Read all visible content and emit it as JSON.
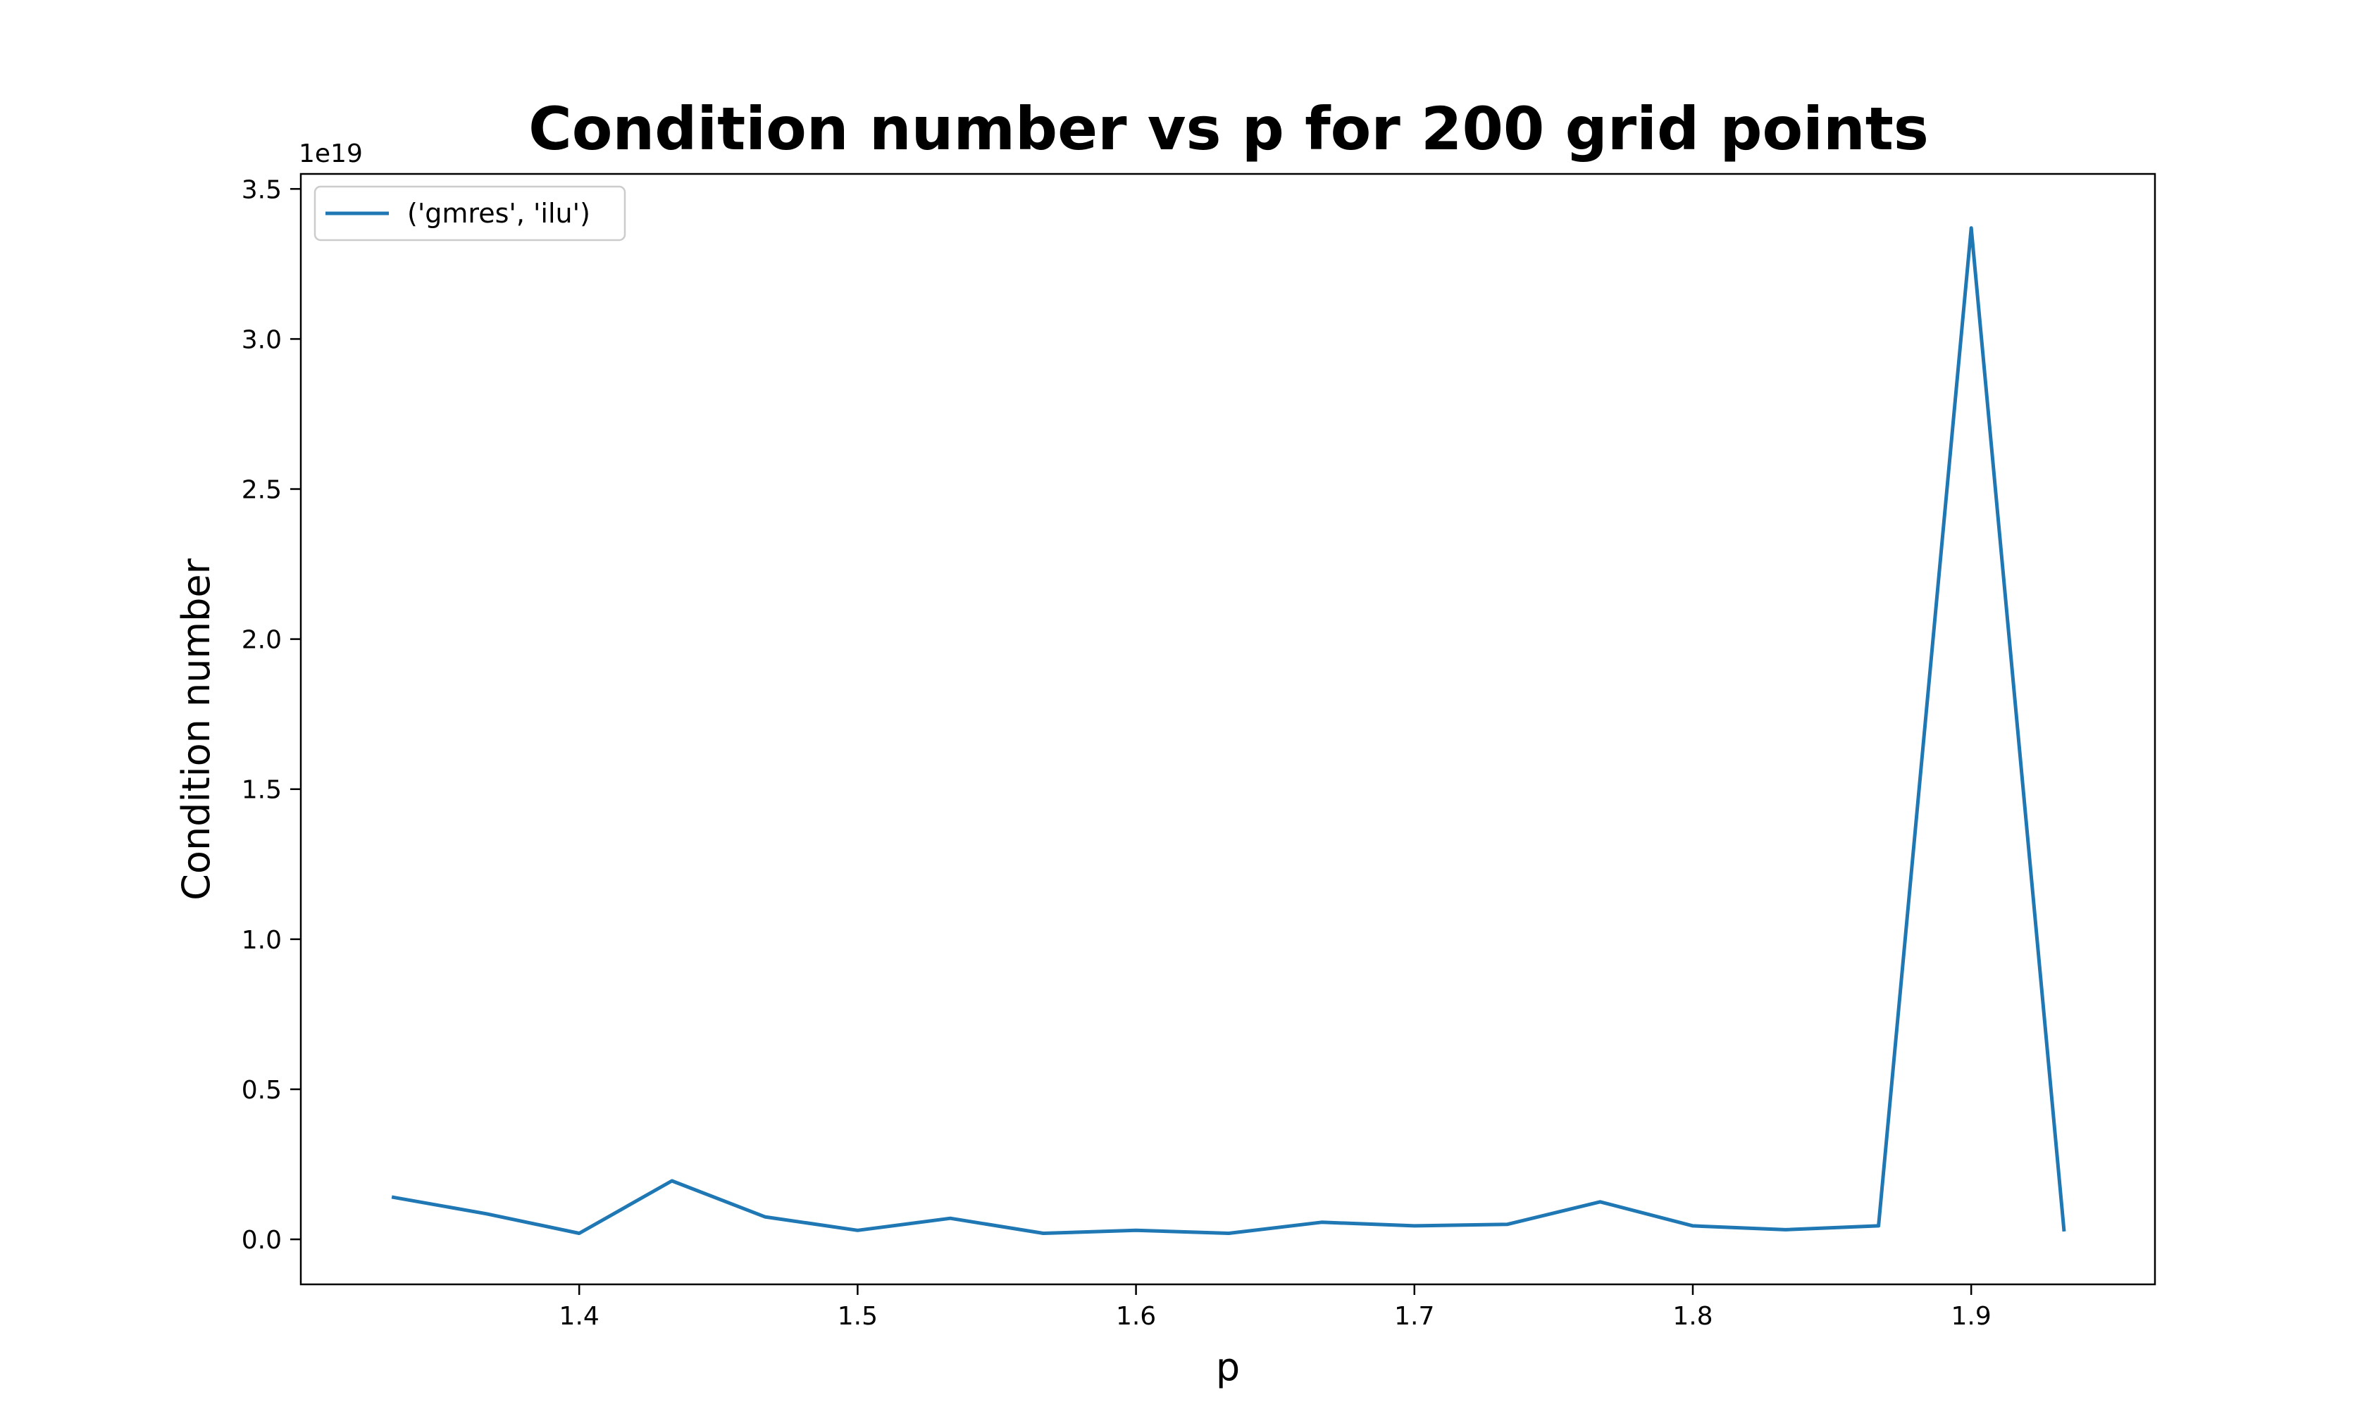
{
  "chart_data": {
    "type": "line",
    "title": "Condition number vs p for 200 grid points",
    "xlabel": "p",
    "ylabel": "Condition number",
    "y_offset_label": "1e19",
    "xlim": [
      1.3,
      1.966
    ],
    "ylim": [
      -0.15,
      3.55
    ],
    "x_ticks": [
      1.4,
      1.5,
      1.6,
      1.7,
      1.8,
      1.9
    ],
    "x_tick_labels": [
      "1.4",
      "1.5",
      "1.6",
      "1.7",
      "1.8",
      "1.9"
    ],
    "y_ticks": [
      0.0,
      0.5,
      1.0,
      1.5,
      2.0,
      2.5,
      3.0,
      3.5
    ],
    "y_tick_labels": [
      "0.0",
      "0.5",
      "1.0",
      "1.5",
      "2.0",
      "2.5",
      "3.0",
      "3.5"
    ],
    "grid": false,
    "legend_position": "top-left",
    "series": [
      {
        "name": "('gmres', 'ilu')",
        "color": "#1f77b4",
        "x": [
          1.3333,
          1.3667,
          1.4,
          1.4333,
          1.4667,
          1.5,
          1.5333,
          1.5667,
          1.6,
          1.6333,
          1.6667,
          1.7,
          1.7333,
          1.7667,
          1.8,
          1.8333,
          1.8667,
          1.9,
          1.9333
        ],
        "y": [
          0.14,
          0.085,
          0.02,
          0.195,
          0.075,
          0.03,
          0.07,
          0.02,
          0.03,
          0.02,
          0.057,
          0.045,
          0.05,
          0.125,
          0.045,
          0.032,
          0.045,
          3.37,
          0.032
        ]
      }
    ]
  }
}
